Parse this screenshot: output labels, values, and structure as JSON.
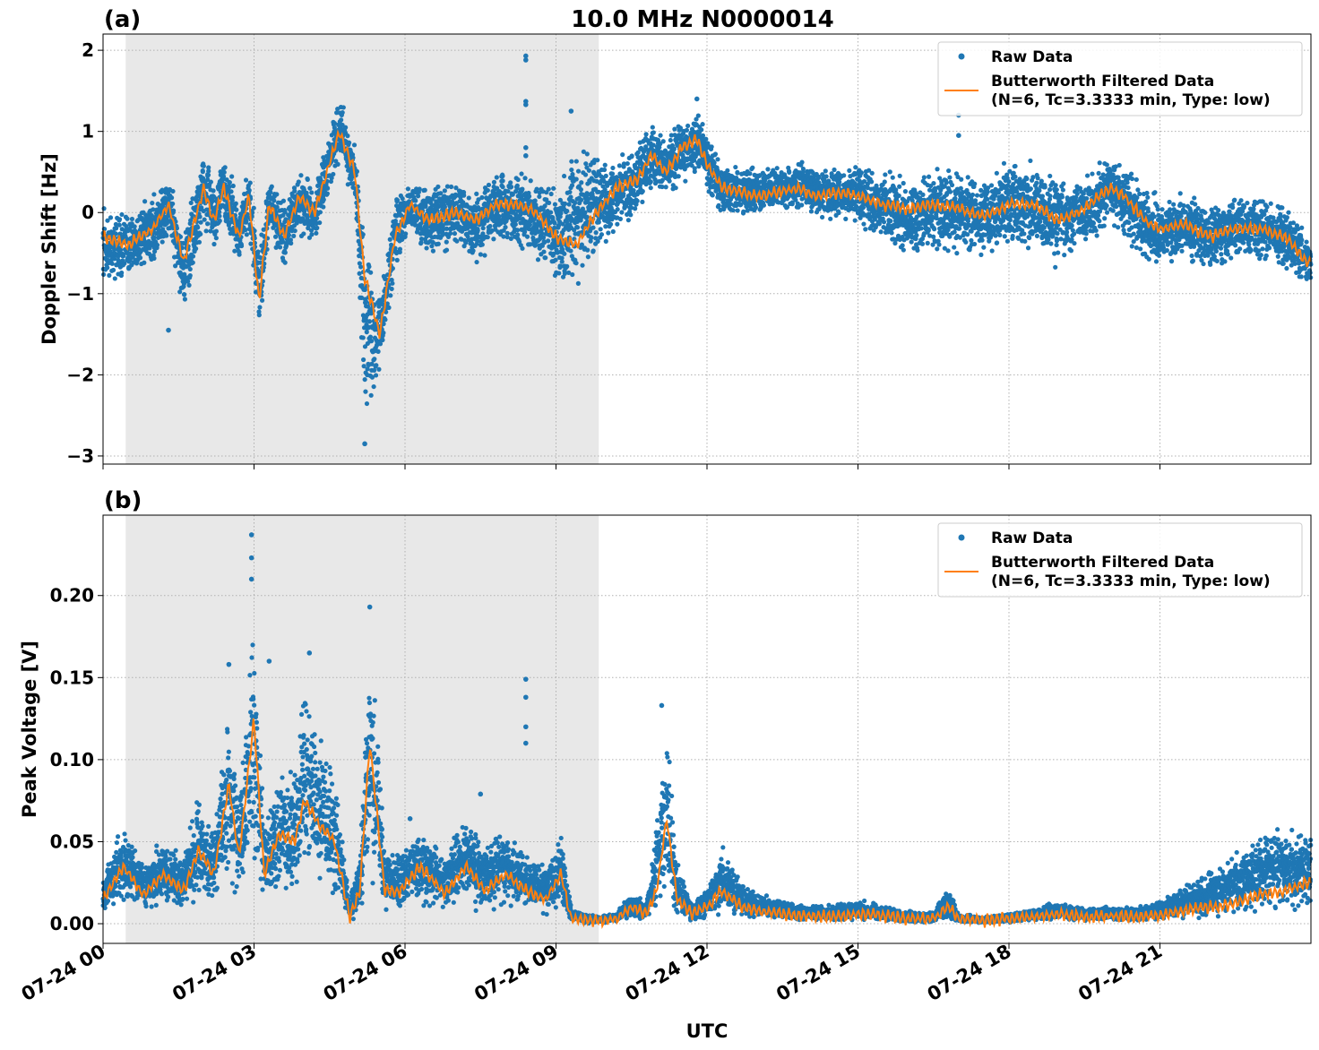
{
  "figure": {
    "title": "10.0 MHz N0000014",
    "xlabel": "UTC",
    "x_tick_labels": [
      "07-24 00",
      "07-24 03",
      "07-24 06",
      "07-24 09",
      "07-24 12",
      "07-24 15",
      "07-24 18",
      "07-24 21"
    ]
  },
  "legend": {
    "raw_label": "Raw Data",
    "filtered_label_line1": "Butterworth Filtered Data",
    "filtered_label_line2": "(N=6, Tc=3.3333 min, Type: low)"
  },
  "colors": {
    "raw": "#1f77b4",
    "filtered": "#ff7f0e",
    "night_shading": "#e8e8e8",
    "grid": "#b0b0b0"
  },
  "chart_data": [
    {
      "type": "scatter",
      "panel_label": "(a)",
      "title": "10.0 MHz N0000014",
      "xlabel": "UTC",
      "ylabel": "Doppler Shift [Hz]",
      "x_unit": "hours since 07-24 00 UTC",
      "xlim": [
        0,
        24
      ],
      "ylim": [
        -3.1,
        2.2
      ],
      "y_ticks": [
        -3,
        -2,
        -1,
        0,
        1,
        2
      ],
      "y_tick_labels": [
        "−3",
        "−2",
        "−1",
        "0",
        "1",
        "2"
      ],
      "shaded_interval": [
        0.45,
        9.85
      ],
      "grid": true,
      "legend_position": "upper right",
      "series": [
        {
          "name": "Butterworth Filtered Data\n(N=6, Tc=3.3333 min, Type: low)",
          "kind": "line",
          "x": [
            0.0,
            0.5,
            1.0,
            1.3,
            1.6,
            2.0,
            2.2,
            2.4,
            2.7,
            2.9,
            3.1,
            3.3,
            3.6,
            3.9,
            4.2,
            4.5,
            4.7,
            5.0,
            5.2,
            5.5,
            5.8,
            6.1,
            6.5,
            7.0,
            7.4,
            7.8,
            8.2,
            8.6,
            9.0,
            9.4,
            9.8,
            10.2,
            10.6,
            10.9,
            11.2,
            11.5,
            11.8,
            12.0,
            12.3,
            12.7,
            13.0,
            13.4,
            13.8,
            14.2,
            14.6,
            15.0,
            15.5,
            16.0,
            16.5,
            17.0,
            17.5,
            18.0,
            18.5,
            19.0,
            19.5,
            20.0,
            20.3,
            20.7,
            21.0,
            21.5,
            22.0,
            22.5,
            23.0,
            23.5,
            23.9
          ],
          "values": [
            -0.3,
            -0.4,
            -0.2,
            0.1,
            -0.6,
            0.3,
            -0.1,
            0.3,
            -0.3,
            0.2,
            -1.1,
            0.1,
            -0.3,
            0.2,
            0.0,
            0.6,
            1.0,
            0.5,
            -0.8,
            -1.5,
            -0.3,
            0.1,
            -0.1,
            0.0,
            -0.1,
            0.1,
            0.1,
            0.0,
            -0.3,
            -0.4,
            0.0,
            0.3,
            0.4,
            0.7,
            0.5,
            0.8,
            0.9,
            0.6,
            0.3,
            0.25,
            0.2,
            0.25,
            0.3,
            0.2,
            0.25,
            0.2,
            0.1,
            0.05,
            0.1,
            0.05,
            -0.05,
            0.1,
            0.1,
            -0.1,
            0.05,
            0.3,
            0.2,
            -0.1,
            -0.2,
            -0.15,
            -0.3,
            -0.2,
            -0.2,
            -0.3,
            -0.6
          ]
        },
        {
          "name": "Raw Data",
          "kind": "scatter",
          "band_x": [
            0.0,
            0.5,
            1.0,
            1.3,
            1.6,
            2.0,
            2.2,
            2.4,
            2.7,
            2.9,
            3.1,
            3.3,
            3.6,
            3.9,
            4.2,
            4.5,
            4.7,
            5.0,
            5.2,
            5.5,
            5.8,
            6.1,
            6.5,
            7.0,
            7.4,
            7.8,
            8.2,
            8.6,
            9.0,
            9.4,
            9.8,
            10.2,
            10.6,
            10.9,
            11.2,
            11.5,
            11.8,
            12.0,
            12.3,
            12.7,
            13.0,
            13.4,
            13.8,
            14.2,
            14.6,
            15.0,
            15.5,
            16.0,
            16.5,
            17.0,
            17.5,
            18.0,
            18.5,
            19.0,
            19.5,
            20.0,
            20.3,
            20.7,
            21.0,
            21.5,
            22.0,
            22.5,
            23.0,
            23.5,
            23.9
          ],
          "band_low": [
            -1.0,
            -0.9,
            -0.7,
            -0.3,
            -1.4,
            -0.3,
            -0.5,
            -0.2,
            -0.8,
            -0.3,
            -1.6,
            -0.3,
            -0.8,
            -0.3,
            -0.4,
            0.2,
            0.6,
            0.0,
            -2.8,
            -2.0,
            -0.8,
            -0.3,
            -0.6,
            -0.5,
            -0.7,
            -0.4,
            -0.5,
            -0.6,
            -1.0,
            -1.0,
            -0.7,
            -0.3,
            -0.1,
            0.2,
            0.1,
            0.3,
            0.4,
            0.2,
            -0.1,
            -0.1,
            -0.1,
            -0.05,
            0.0,
            -0.1,
            -0.15,
            -0.2,
            -0.5,
            -0.6,
            -0.5,
            -0.6,
            -0.7,
            -0.5,
            -0.6,
            -0.8,
            -0.5,
            -0.2,
            -0.4,
            -0.7,
            -0.8,
            -0.6,
            -0.8,
            -0.6,
            -0.7,
            -0.8,
            -0.95
          ],
          "band_high": [
            0.1,
            0.1,
            0.3,
            0.5,
            -0.1,
            0.9,
            0.4,
            0.8,
            0.2,
            0.6,
            -0.3,
            0.5,
            0.2,
            0.6,
            0.3,
            1.1,
            1.5,
            0.9,
            0.0,
            -0.9,
            0.3,
            0.4,
            0.4,
            0.5,
            0.3,
            0.6,
            0.6,
            0.5,
            0.4,
            0.9,
            1.0,
            0.7,
            0.9,
            1.2,
            1.0,
            1.3,
            1.4,
            1.0,
            0.7,
            0.6,
            0.6,
            0.6,
            0.7,
            0.6,
            0.6,
            0.7,
            0.6,
            0.5,
            0.6,
            0.6,
            0.5,
            0.8,
            0.7,
            0.6,
            0.5,
            0.8,
            0.7,
            0.4,
            0.3,
            0.3,
            0.2,
            0.3,
            0.3,
            0.2,
            -0.2
          ],
          "outliers": [
            [
              8.4,
              1.93
            ],
            [
              8.4,
              1.88
            ],
            [
              8.4,
              1.37
            ],
            [
              8.4,
              1.33
            ],
            [
              8.4,
              0.8
            ],
            [
              8.4,
              0.7
            ],
            [
              9.3,
              1.25
            ],
            [
              11.8,
              1.4
            ],
            [
              17.0,
              1.2
            ],
            [
              17.0,
              0.95
            ],
            [
              5.2,
              -2.85
            ],
            [
              1.3,
              -1.45
            ]
          ]
        }
      ]
    },
    {
      "type": "scatter",
      "panel_label": "(b)",
      "xlabel": "UTC",
      "ylabel": "Peak Voltage [V]",
      "x_unit": "hours since 07-24 00 UTC",
      "xlim": [
        0,
        24
      ],
      "ylim": [
        -0.012,
        0.249
      ],
      "y_ticks": [
        0.0,
        0.05,
        0.1,
        0.15,
        0.2
      ],
      "y_tick_labels": [
        "0.00",
        "0.05",
        "0.10",
        "0.15",
        "0.20"
      ],
      "shaded_interval": [
        0.45,
        9.85
      ],
      "grid": true,
      "legend_position": "upper right",
      "series": [
        {
          "name": "Butterworth Filtered Data\n(N=6, Tc=3.3333 min, Type: low)",
          "kind": "line",
          "x": [
            0.0,
            0.4,
            0.8,
            1.2,
            1.6,
            1.9,
            2.2,
            2.5,
            2.7,
            3.0,
            3.2,
            3.5,
            3.8,
            4.0,
            4.3,
            4.6,
            4.9,
            5.1,
            5.3,
            5.6,
            5.9,
            6.3,
            6.8,
            7.2,
            7.6,
            8.0,
            8.4,
            8.8,
            9.1,
            9.3,
            9.6,
            9.9,
            10.2,
            10.5,
            10.8,
            11.0,
            11.2,
            11.4,
            11.7,
            12.0,
            12.3,
            12.7,
            13.0,
            13.5,
            14.0,
            14.5,
            15.0,
            15.5,
            16.0,
            16.5,
            16.8,
            17.0,
            17.5,
            18.0,
            18.5,
            19.0,
            19.5,
            20.0,
            20.5,
            21.0,
            21.5,
            22.0,
            22.5,
            23.0,
            23.5,
            23.9
          ],
          "values": [
            0.015,
            0.035,
            0.018,
            0.03,
            0.02,
            0.045,
            0.03,
            0.085,
            0.04,
            0.125,
            0.03,
            0.055,
            0.05,
            0.075,
            0.06,
            0.05,
            0.004,
            0.02,
            0.11,
            0.02,
            0.02,
            0.035,
            0.018,
            0.035,
            0.02,
            0.03,
            0.02,
            0.015,
            0.03,
            0.003,
            0.002,
            0.002,
            0.003,
            0.01,
            0.006,
            0.02,
            0.065,
            0.015,
            0.006,
            0.01,
            0.02,
            0.01,
            0.008,
            0.006,
            0.005,
            0.004,
            0.006,
            0.005,
            0.003,
            0.003,
            0.01,
            0.003,
            0.002,
            0.003,
            0.004,
            0.006,
            0.004,
            0.005,
            0.004,
            0.005,
            0.008,
            0.01,
            0.012,
            0.018,
            0.02,
            0.025
          ]
        },
        {
          "name": "Raw Data",
          "kind": "scatter",
          "band_x": [
            0.0,
            0.4,
            0.8,
            1.2,
            1.6,
            1.9,
            2.2,
            2.5,
            2.7,
            3.0,
            3.2,
            3.5,
            3.8,
            4.0,
            4.3,
            4.6,
            4.9,
            5.1,
            5.3,
            5.6,
            5.9,
            6.3,
            6.8,
            7.2,
            7.6,
            8.0,
            8.4,
            8.8,
            9.1,
            9.3,
            9.6,
            9.9,
            10.2,
            10.5,
            10.8,
            11.0,
            11.2,
            11.4,
            11.7,
            12.0,
            12.3,
            12.7,
            13.0,
            13.5,
            14.0,
            14.5,
            15.0,
            15.5,
            16.0,
            16.5,
            16.8,
            17.0,
            17.5,
            18.0,
            18.5,
            19.0,
            19.5,
            20.0,
            20.5,
            21.0,
            21.5,
            22.0,
            22.5,
            23.0,
            23.5,
            23.9
          ],
          "band_low": [
            0.004,
            0.008,
            0.005,
            0.008,
            0.006,
            0.01,
            0.008,
            0.02,
            0.01,
            0.02,
            0.008,
            0.012,
            0.012,
            0.018,
            0.012,
            0.01,
            0.0,
            0.004,
            0.02,
            0.005,
            0.005,
            0.008,
            0.004,
            0.008,
            0.005,
            0.008,
            0.005,
            0.004,
            0.006,
            0.001,
            0.0,
            0.0,
            0.0,
            0.002,
            0.001,
            0.004,
            0.01,
            0.003,
            0.001,
            0.002,
            0.004,
            0.002,
            0.002,
            0.001,
            0.001,
            0.001,
            0.001,
            0.001,
            0.0,
            0.0,
            0.001,
            0.0,
            0.0,
            0.0,
            0.001,
            0.001,
            0.001,
            0.001,
            0.001,
            0.001,
            0.002,
            0.002,
            0.003,
            0.004,
            0.005,
            0.006
          ],
          "band_high": [
            0.03,
            0.07,
            0.04,
            0.055,
            0.045,
            0.09,
            0.06,
            0.14,
            0.08,
            0.2,
            0.07,
            0.1,
            0.1,
            0.16,
            0.12,
            0.1,
            0.015,
            0.05,
            0.19,
            0.05,
            0.05,
            0.065,
            0.045,
            0.07,
            0.05,
            0.065,
            0.045,
            0.04,
            0.06,
            0.01,
            0.006,
            0.005,
            0.008,
            0.02,
            0.015,
            0.07,
            0.13,
            0.04,
            0.015,
            0.025,
            0.05,
            0.025,
            0.02,
            0.015,
            0.012,
            0.012,
            0.016,
            0.012,
            0.008,
            0.008,
            0.025,
            0.006,
            0.005,
            0.007,
            0.01,
            0.015,
            0.01,
            0.012,
            0.01,
            0.015,
            0.025,
            0.035,
            0.045,
            0.06,
            0.065,
            0.06
          ],
          "outliers": [
            [
              2.95,
              0.237
            ],
            [
              2.95,
              0.223
            ],
            [
              2.95,
              0.21
            ],
            [
              2.5,
              0.158
            ],
            [
              3.3,
              0.16
            ],
            [
              4.1,
              0.165
            ],
            [
              5.3,
              0.193
            ],
            [
              8.4,
              0.149
            ],
            [
              8.4,
              0.138
            ],
            [
              8.4,
              0.12
            ],
            [
              8.4,
              0.11
            ],
            [
              11.1,
              0.133
            ],
            [
              7.5,
              0.079
            ],
            [
              6.1,
              0.064
            ]
          ]
        }
      ]
    }
  ]
}
